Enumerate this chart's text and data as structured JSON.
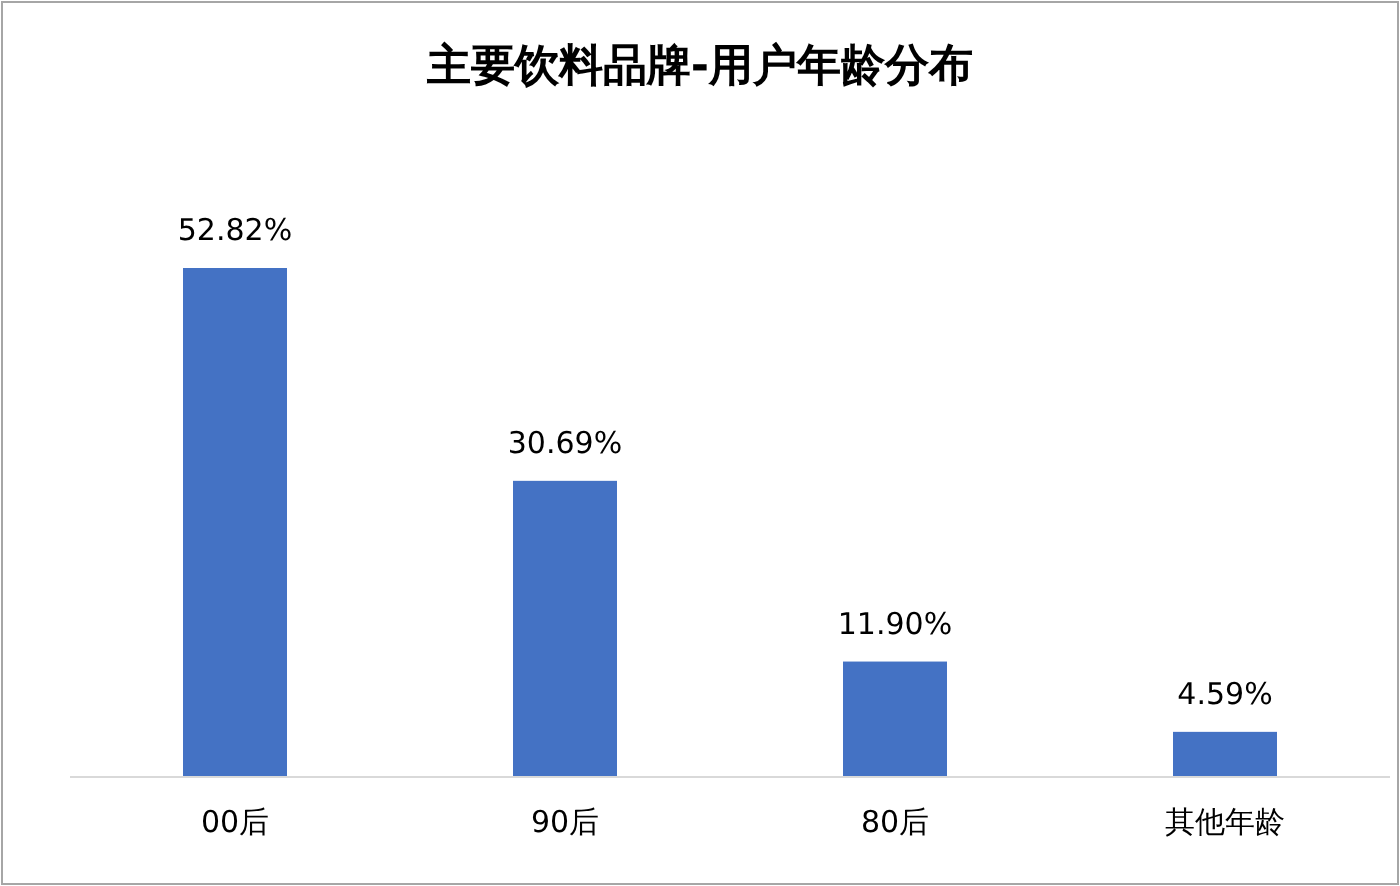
{
  "chart_data": {
    "type": "bar",
    "title": "主要饮料品牌-用户年龄分布",
    "categories": [
      "00后",
      "90后",
      "80后",
      "其他年龄"
    ],
    "values": [
      52.82,
      30.69,
      11.9,
      4.59
    ],
    "value_labels": [
      "52.82%",
      "30.69%",
      "11.90%",
      "4.59%"
    ],
    "color": "#4472c4"
  }
}
